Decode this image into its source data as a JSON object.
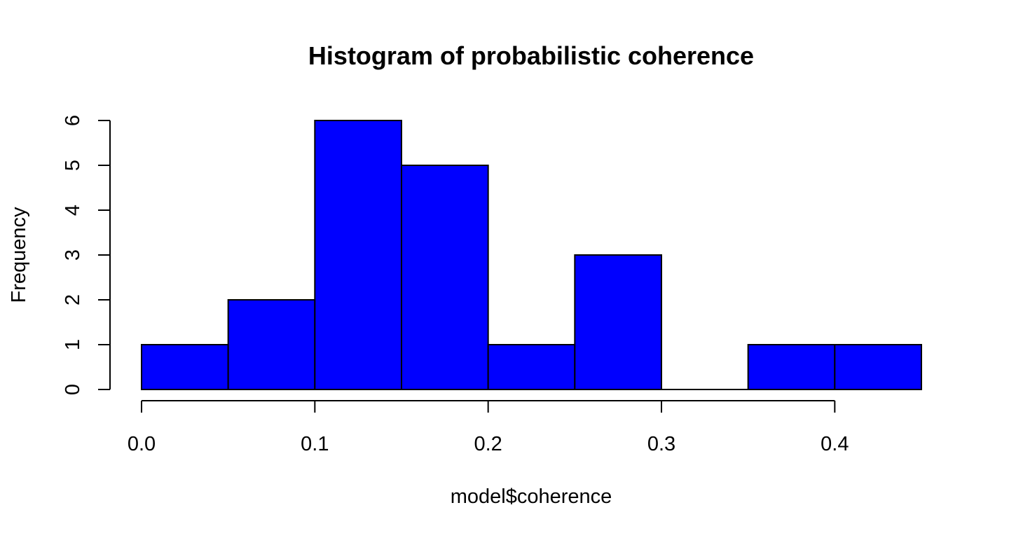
{
  "chart_data": {
    "type": "bar",
    "title": "Histogram of probabilistic coherence",
    "xlabel": "model$coherence",
    "ylabel": "Frequency",
    "bins": [
      {
        "start": 0.0,
        "end": 0.05,
        "count": 1
      },
      {
        "start": 0.05,
        "end": 0.1,
        "count": 2
      },
      {
        "start": 0.1,
        "end": 0.15,
        "count": 6
      },
      {
        "start": 0.15,
        "end": 0.2,
        "count": 5
      },
      {
        "start": 0.2,
        "end": 0.25,
        "count": 1
      },
      {
        "start": 0.25,
        "end": 0.3,
        "count": 3
      },
      {
        "start": 0.3,
        "end": 0.35,
        "count": 0
      },
      {
        "start": 0.35,
        "end": 0.4,
        "count": 1
      },
      {
        "start": 0.4,
        "end": 0.45,
        "count": 1
      }
    ],
    "xlim": [
      0.0,
      0.45
    ],
    "ylim": [
      0,
      6
    ],
    "x_ticks": [
      "0.0",
      "0.1",
      "0.2",
      "0.3",
      "0.4"
    ],
    "y_ticks": [
      "0",
      "1",
      "2",
      "3",
      "4",
      "5",
      "6"
    ],
    "bar_color": "#0000ff",
    "grid": false
  }
}
